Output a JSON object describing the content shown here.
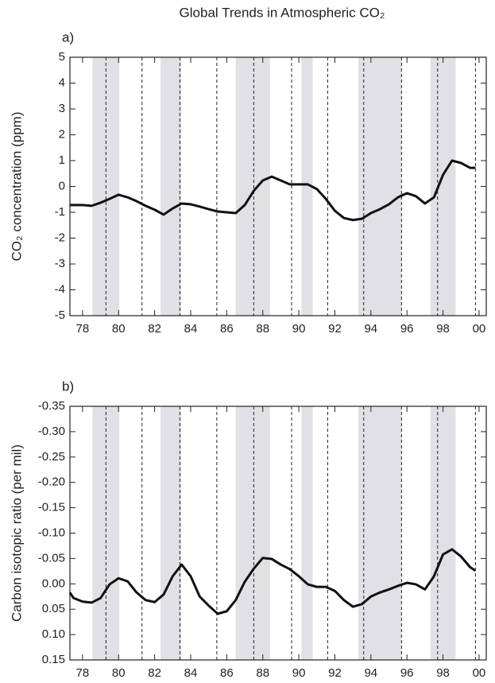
{
  "title": "Global Trends in Atmospheric CO₂",
  "chart_data": [
    {
      "type": "line",
      "label": "a)",
      "ylabel": "CO₂ concentration (ppm)",
      "color": "#111111",
      "band_color": "#e0e0e5",
      "x": [
        77.3,
        78,
        78.5,
        79,
        79.5,
        80,
        80.5,
        81,
        81.5,
        82,
        82.5,
        83,
        83.5,
        84,
        84.5,
        85,
        85.5,
        86,
        86.5,
        87,
        87.5,
        88,
        88.5,
        89,
        89.5,
        90,
        90.5,
        91,
        91.5,
        92,
        92.5,
        93,
        93.5,
        94,
        94.5,
        95,
        95.5,
        96,
        96.5,
        97,
        97.5,
        98,
        98.5,
        99,
        99.5,
        99.8
      ],
      "values": [
        -0.72,
        -0.72,
        -0.75,
        -0.63,
        -0.48,
        -0.32,
        -0.42,
        -0.57,
        -0.75,
        -0.9,
        -1.09,
        -0.85,
        -0.66,
        -0.69,
        -0.78,
        -0.88,
        -0.97,
        -1.0,
        -1.03,
        -0.72,
        -0.17,
        0.23,
        0.38,
        0.23,
        0.08,
        0.08,
        0.08,
        -0.1,
        -0.48,
        -0.94,
        -1.22,
        -1.3,
        -1.25,
        -1.03,
        -0.88,
        -0.69,
        -0.42,
        -0.26,
        -0.38,
        -0.66,
        -0.42,
        0.45,
        1.0,
        0.91,
        0.72,
        0.72
      ],
      "xlim": [
        77.3,
        100.4
      ],
      "ylim": [
        -5,
        5
      ],
      "xticks": [
        78,
        80,
        82,
        84,
        86,
        88,
        90,
        92,
        94,
        96,
        98,
        {
          "value": 100,
          "label": "00"
        }
      ],
      "yticks": [
        -5,
        -4,
        -3,
        -2,
        -1,
        0,
        1,
        2,
        3,
        4,
        5
      ],
      "shaded_periods": [
        [
          78.55,
          80.04
        ],
        [
          82.33,
          83.47
        ],
        [
          86.5,
          88.4
        ],
        [
          90.15,
          90.77
        ],
        [
          93.3,
          95.7
        ],
        [
          97.3,
          98.7
        ]
      ],
      "dashed_lines": [
        79.3,
        81.3,
        83.4,
        85.45,
        87.5,
        89.6,
        91.6,
        93.6,
        95.7,
        97.7,
        99.8
      ]
    },
    {
      "type": "line",
      "label": "b)",
      "ylabel": "Carbon isotopic ratio (per mil)",
      "color": "#111111",
      "band_color": "#e0e0e5",
      "x": [
        77.3,
        77.5,
        78,
        78.5,
        79,
        79.5,
        80,
        80.5,
        81,
        81.5,
        82,
        82.5,
        83,
        83.5,
        84,
        84.5,
        85,
        85.5,
        86,
        86.5,
        87,
        87.5,
        88,
        88.5,
        89,
        89.5,
        90,
        90.5,
        91,
        91.5,
        92,
        92.5,
        93,
        93.5,
        94,
        94.5,
        95,
        95.5,
        96,
        96.5,
        97,
        97.5,
        98,
        98.5,
        99,
        99.5,
        99.8
      ],
      "values": [
        0.017,
        0.028,
        0.035,
        0.037,
        0.028,
        0.001,
        -0.011,
        -0.005,
        0.017,
        0.032,
        0.036,
        0.021,
        -0.015,
        -0.038,
        -0.015,
        0.025,
        0.043,
        0.059,
        0.054,
        0.032,
        -0.004,
        -0.03,
        -0.051,
        -0.049,
        -0.038,
        -0.029,
        -0.015,
        0.001,
        0.006,
        0.006,
        0.014,
        0.032,
        0.045,
        0.04,
        0.025,
        0.017,
        0.011,
        0.004,
        -0.002,
        0.001,
        0.011,
        -0.015,
        -0.058,
        -0.068,
        -0.054,
        -0.033,
        -0.026
      ],
      "xlim": [
        77.3,
        100.4
      ],
      "ylim": [
        0.15,
        -0.35
      ],
      "xticks": [
        78,
        80,
        82,
        84,
        86,
        88,
        90,
        92,
        94,
        96,
        98,
        {
          "value": 100,
          "label": "00"
        }
      ],
      "yticks": [
        -0.35,
        {
          "value": -0.3,
          "label": "-0.30"
        },
        -0.25,
        {
          "value": -0.2,
          "label": "-0.20"
        },
        -0.15,
        {
          "value": -0.1,
          "label": "-0.10"
        },
        -0.05,
        {
          "value": 0,
          "label": "0.00"
        },
        0.05,
        {
          "value": 0.1,
          "label": "0.10"
        },
        0.15
      ],
      "shaded_periods": [
        [
          78.55,
          80.04
        ],
        [
          82.33,
          83.47
        ],
        [
          86.5,
          88.4
        ],
        [
          90.15,
          90.77
        ],
        [
          93.3,
          95.7
        ],
        [
          97.3,
          98.7
        ]
      ],
      "dashed_lines": [
        79.3,
        81.3,
        83.4,
        85.45,
        87.5,
        89.6,
        91.6,
        93.6,
        95.7,
        97.7,
        99.8
      ]
    }
  ]
}
